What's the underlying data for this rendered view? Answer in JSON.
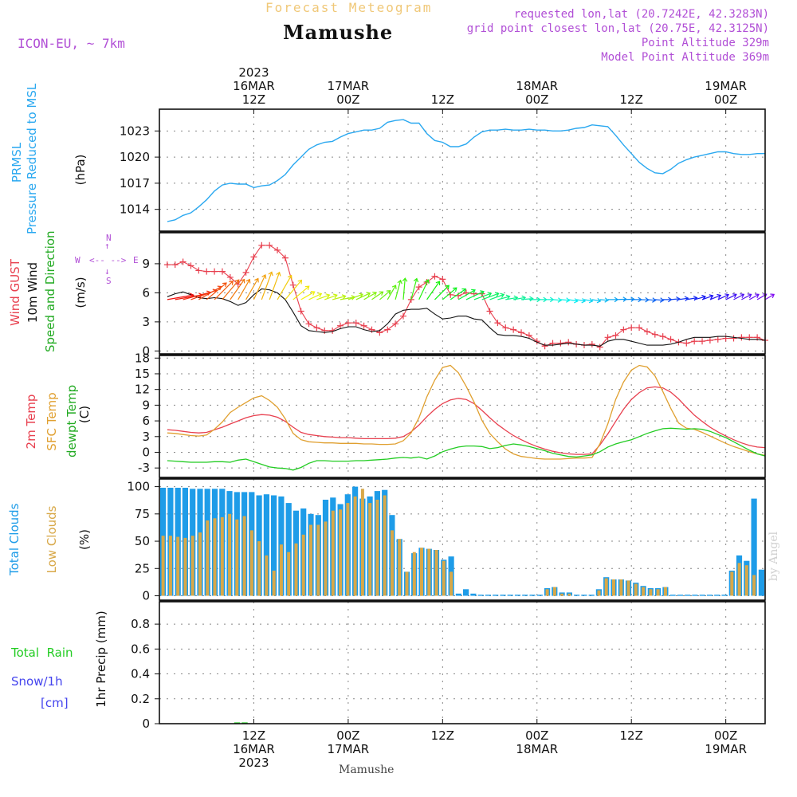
{
  "header": {
    "subtitle": "Forecast Meteogram",
    "title": "Mamushe",
    "model": "ICON-EU, ~ 7km",
    "requested": "requested lon,lat (20.7242E, 42.3283N)",
    "gridpoint": "grid point closest lon,lat (20.75E, 42.3125N)",
    "point_alt": "Point Altitude 329m",
    "model_alt": "Model Point Altitude 369m",
    "watermark": "by Angel",
    "bottom_label": "Mamushe"
  },
  "colors": {
    "pressure": "#2aa8f0",
    "gust": "#e8404f",
    "wind": "#111111",
    "temp2m": "#e8404f",
    "sfc": "#e0a030",
    "dew": "#22cc22",
    "total_clouds": "#1e9ce8",
    "low_clouds": "#d8a848",
    "rain": "#22cc22",
    "snow": "#4444ee",
    "compass": "#b14fd6"
  },
  "time_axis": {
    "top_labels": [
      {
        "lines": [
          "2023",
          "16MAR",
          "12Z"
        ],
        "h": 12
      },
      {
        "lines": [
          "17MAR",
          "00Z"
        ],
        "h": 24
      },
      {
        "lines": [
          "12Z"
        ],
        "h": 36
      },
      {
        "lines": [
          "18MAR",
          "00Z"
        ],
        "h": 48
      },
      {
        "lines": [
          "12Z"
        ],
        "h": 60
      },
      {
        "lines": [
          "19MAR",
          "00Z"
        ],
        "h": 72
      }
    ],
    "bottom_labels": [
      {
        "lines": [
          "12Z",
          "16MAR",
          "2023"
        ],
        "h": 12
      },
      {
        "lines": [
          "00Z",
          "17MAR"
        ],
        "h": 24
      },
      {
        "lines": [
          "12Z"
        ],
        "h": 36
      },
      {
        "lines": [
          "00Z",
          "18MAR"
        ],
        "h": 48
      },
      {
        "lines": [
          "12Z"
        ],
        "h": 60
      },
      {
        "lines": [
          "00Z",
          "19MAR"
        ],
        "h": 72
      }
    ]
  },
  "panels": {
    "pressure": {
      "label_a": "PRMSL",
      "label_b": "Pressure Reduced to MSL",
      "unit": "(hPa)"
    },
    "wind": {
      "label_gust": "Wind GUST",
      "label_wind": "10m Wind",
      "label_dir": "Speed and Direction",
      "unit": "(m/s)",
      "compass_n": "N",
      "compass_s": "S",
      "compass_w": "W",
      "compass_e": "E"
    },
    "temp": {
      "label_2m": "2m Temp",
      "label_sfc": "SFC Temp",
      "label_dew": "dewpt Temp",
      "unit": "(C)"
    },
    "clouds": {
      "label_total": "Total Clouds",
      "label_low": "Low Clouds",
      "unit": "(%)"
    },
    "precip": {
      "label_rain": "Total  Rain",
      "label_snow": "Snow/1h",
      "label_cm": "[cm]",
      "unit": "1hr Precip (mm)"
    }
  },
  "chart_data": [
    {
      "type": "line",
      "title": "PRMSL Pressure Reduced to MSL",
      "ylabel": "hPa",
      "ylim": [
        1011.5,
        1025.5
      ],
      "yticks": [
        1014,
        1017,
        1020,
        1023
      ],
      "x_unit": "hours since 2023-03-16 00Z",
      "x": [
        1,
        2,
        3,
        4,
        5,
        6,
        7,
        8,
        9,
        10,
        11,
        12,
        13,
        14,
        15,
        16,
        17,
        18,
        19,
        20,
        21,
        22,
        23,
        24,
        25,
        26,
        27,
        28,
        29,
        30,
        31,
        32,
        33,
        34,
        35,
        36,
        37,
        38,
        39,
        40,
        41,
        42,
        43,
        44,
        45,
        46,
        47,
        48,
        49,
        50,
        51,
        52,
        53,
        54,
        55,
        56,
        57,
        58,
        59,
        60,
        61,
        62,
        63,
        64,
        65,
        66,
        67,
        68,
        69,
        70,
        71,
        72,
        73,
        74,
        75,
        76,
        77
      ],
      "values": [
        1012.6,
        1012.8,
        1013.3,
        1013.6,
        1014.3,
        1015.1,
        1016.1,
        1016.8,
        1017.0,
        1016.9,
        1016.9,
        1016.5,
        1016.7,
        1016.8,
        1017.3,
        1018.0,
        1019.1,
        1020.0,
        1020.9,
        1021.4,
        1021.7,
        1021.8,
        1022.3,
        1022.7,
        1022.9,
        1023.1,
        1023.1,
        1023.3,
        1024.0,
        1024.2,
        1024.3,
        1023.9,
        1023.9,
        1022.7,
        1021.9,
        1021.7,
        1021.2,
        1021.2,
        1021.5,
        1022.3,
        1022.9,
        1023.1,
        1023.1,
        1023.2,
        1023.1,
        1023.1,
        1023.2,
        1023.1,
        1023.1,
        1023.0,
        1023.0,
        1023.1,
        1023.3,
        1023.4,
        1023.7,
        1023.6,
        1023.5,
        1022.5,
        1021.4,
        1020.4,
        1019.4,
        1018.7,
        1018.2,
        1018.1,
        1018.6,
        1019.3,
        1019.7,
        1020.0,
        1020.2,
        1020.4,
        1020.6,
        1020.6,
        1020.4,
        1020.3,
        1020.3,
        1020.4,
        1020.4
      ]
    },
    {
      "type": "line",
      "title": "Wind GUST / 10m Wind Speed and Direction",
      "ylabel": "m/s",
      "ylim": [
        -0.3,
        12.2
      ],
      "yticks": [
        0,
        3,
        6,
        9
      ],
      "series": [
        {
          "name": "Wind GUST",
          "x_step": 1,
          "values": [
            8.9,
            8.9,
            9.2,
            8.8,
            8.3,
            8.2,
            8.2,
            8.2,
            7.6,
            6.9,
            8.1,
            9.7,
            10.9,
            10.9,
            10.4,
            9.6,
            6.8,
            4.1,
            2.8,
            2.4,
            2.1,
            2.1,
            2.6,
            2.9,
            2.9,
            2.6,
            2.2,
            1.9,
            2.2,
            2.8,
            3.6,
            5.3,
            6.6,
            7.1,
            7.7,
            7.4,
            5.8,
            5.7,
            6.0,
            5.9,
            5.9,
            4.1,
            2.9,
            2.4,
            2.2,
            1.9,
            1.6,
            1.0,
            0.5,
            0.8,
            0.8,
            0.9,
            0.7,
            0.6,
            0.7,
            0.4,
            1.4,
            1.6,
            2.2,
            2.4,
            2.4,
            2.0,
            1.7,
            1.5,
            1.2,
            0.9,
            0.8,
            1.0,
            1.0,
            1.1,
            1.2,
            1.3,
            1.3,
            1.4,
            1.4,
            1.4,
            1.1
          ]
        },
        {
          "name": "10m Wind",
          "x_step": 1,
          "values": [
            5.6,
            5.9,
            6.1,
            5.8,
            5.5,
            5.4,
            5.5,
            5.4,
            5.1,
            4.7,
            5.0,
            5.8,
            6.4,
            6.3,
            6.0,
            5.3,
            4.0,
            2.6,
            2.1,
            2.0,
            1.9,
            2.0,
            2.3,
            2.5,
            2.5,
            2.2,
            2.0,
            2.1,
            2.8,
            3.8,
            4.2,
            4.3,
            4.3,
            4.4,
            3.8,
            3.3,
            3.4,
            3.6,
            3.6,
            3.3,
            3.2,
            2.4,
            1.7,
            1.6,
            1.6,
            1.5,
            1.3,
            0.9,
            0.6,
            0.6,
            0.7,
            0.8,
            0.7,
            0.6,
            0.6,
            0.5,
            1.0,
            1.2,
            1.2,
            1.0,
            0.8,
            0.6,
            0.6,
            0.6,
            0.7,
            0.9,
            1.2,
            1.4,
            1.4,
            1.4,
            1.5,
            1.5,
            1.4,
            1.3,
            1.2,
            1.2,
            1.1
          ]
        }
      ],
      "wind_dir_from_deg_hourly": [
        260,
        260,
        255,
        250,
        240,
        230,
        225,
        220,
        215,
        210,
        210,
        205,
        200,
        200,
        210,
        220,
        230,
        240,
        245,
        250,
        250,
        255,
        260,
        250,
        245,
        240,
        235,
        230,
        210,
        195,
        185,
        195,
        205,
        215,
        225,
        230,
        235,
        240,
        245,
        250,
        250,
        250,
        255,
        260,
        260,
        265,
        270,
        270,
        270,
        275,
        275,
        280,
        280,
        280,
        280,
        275,
        270,
        268,
        268,
        270,
        272,
        275,
        275,
        270,
        265,
        262,
        260,
        255,
        250,
        248,
        245,
        244,
        243,
        242,
        241,
        240,
        240
      ]
    },
    {
      "type": "line",
      "title": "2m Temp / SFC Temp / dewpt Temp",
      "ylabel": "C",
      "ylim": [
        -4.8,
        18.5
      ],
      "yticks": [
        -3,
        0,
        3,
        6,
        9,
        12,
        15,
        18
      ],
      "series": [
        {
          "name": "2m Temp",
          "x_step": 1,
          "values": [
            4.3,
            4.2,
            4.0,
            3.8,
            3.7,
            3.8,
            4.3,
            4.8,
            5.4,
            6.0,
            6.6,
            7.0,
            7.2,
            7.1,
            6.7,
            5.9,
            4.8,
            3.8,
            3.4,
            3.2,
            3.0,
            2.9,
            2.8,
            2.8,
            2.7,
            2.6,
            2.6,
            2.6,
            2.6,
            2.7,
            3.0,
            3.9,
            5.2,
            6.8,
            8.2,
            9.3,
            10.0,
            10.3,
            10.1,
            9.3,
            8.0,
            6.6,
            5.3,
            4.2,
            3.2,
            2.4,
            1.7,
            1.1,
            0.6,
            0.2,
            -0.1,
            -0.3,
            -0.4,
            -0.4,
            -0.3,
            1.4,
            3.5,
            5.9,
            8.2,
            10.1,
            11.4,
            12.3,
            12.5,
            12.3,
            11.5,
            10.2,
            8.6,
            7.1,
            5.9,
            4.8,
            3.9,
            3.1,
            2.4,
            1.8,
            1.3,
            1.0,
            0.9
          ]
        },
        {
          "name": "SFC Temp",
          "x_step": 1,
          "values": [
            3.7,
            3.6,
            3.4,
            3.2,
            3.1,
            3.3,
            4.4,
            5.8,
            7.6,
            8.6,
            9.5,
            10.4,
            10.8,
            9.9,
            8.6,
            6.4,
            3.6,
            2.4,
            2.0,
            1.9,
            1.8,
            1.8,
            1.7,
            1.7,
            1.7,
            1.6,
            1.6,
            1.5,
            1.5,
            1.6,
            2.2,
            3.7,
            6.6,
            10.6,
            13.8,
            16.2,
            16.6,
            15.2,
            12.6,
            9.6,
            6.1,
            3.6,
            2.0,
            0.6,
            -0.3,
            -0.8,
            -1.0,
            -1.2,
            -1.3,
            -1.3,
            -1.3,
            -1.2,
            -1.1,
            -1.1,
            -1.0,
            1.6,
            5.4,
            10.1,
            13.4,
            15.7,
            16.6,
            16.3,
            14.6,
            11.6,
            8.4,
            5.6,
            4.6,
            4.4,
            3.8,
            3.1,
            2.4,
            1.7,
            1.1,
            0.6,
            0.1,
            -0.3,
            -0.6
          ]
        },
        {
          "name": "dewpt Temp",
          "x_step": 1,
          "values": [
            -1.6,
            -1.7,
            -1.8,
            -1.9,
            -1.9,
            -1.9,
            -1.8,
            -1.8,
            -1.9,
            -1.5,
            -1.3,
            -1.8,
            -2.3,
            -2.8,
            -3.0,
            -3.1,
            -3.4,
            -2.9,
            -2.1,
            -1.6,
            -1.6,
            -1.7,
            -1.7,
            -1.7,
            -1.6,
            -1.6,
            -1.5,
            -1.4,
            -1.3,
            -1.1,
            -1.0,
            -1.1,
            -0.9,
            -1.3,
            -0.7,
            0.1,
            0.6,
            1.0,
            1.2,
            1.2,
            1.1,
            0.7,
            0.9,
            1.3,
            1.6,
            1.4,
            1.1,
            0.7,
            0.3,
            -0.2,
            -0.5,
            -0.8,
            -0.9,
            -0.7,
            -0.5,
            0.1,
            1.0,
            1.6,
            2.0,
            2.4,
            3.0,
            3.6,
            4.1,
            4.5,
            4.6,
            4.5,
            4.4,
            4.5,
            4.4,
            4.0,
            3.4,
            2.8,
            2.0,
            1.2,
            0.4,
            -0.3,
            -0.7
          ]
        }
      ]
    },
    {
      "type": "bar",
      "title": "Total Clouds / Low Clouds",
      "ylabel": "%",
      "ylim": [
        -4,
        107
      ],
      "yticks": [
        0,
        25,
        50,
        75,
        100
      ],
      "series": [
        {
          "name": "Total Clouds",
          "x_step": 1,
          "values": [
            99,
            99,
            99,
            99,
            98,
            98,
            98,
            98,
            98,
            96,
            95,
            95,
            95,
            92,
            93,
            92,
            91,
            85,
            78,
            80,
            75,
            74,
            88,
            90,
            84,
            93,
            100,
            89,
            91,
            96,
            97,
            74,
            52,
            22,
            39,
            44,
            43,
            42,
            33,
            36,
            2,
            6,
            2,
            1,
            1,
            1,
            1,
            1,
            1,
            1,
            1,
            1,
            7,
            8,
            3,
            3,
            1,
            1,
            1,
            6,
            17,
            15,
            15,
            14,
            12,
            9,
            7,
            7,
            8,
            1,
            1,
            1,
            1,
            1,
            1,
            1,
            1,
            23,
            37,
            32,
            89,
            24
          ]
        },
        {
          "name": "Low Clouds",
          "x_step": 1,
          "values": [
            55,
            55,
            54,
            53,
            55,
            58,
            69,
            71,
            72,
            75,
            70,
            73,
            60,
            50,
            37,
            23,
            47,
            40,
            48,
            56,
            65,
            65,
            68,
            78,
            79,
            85,
            91,
            98,
            85,
            88,
            92,
            60,
            52,
            22,
            40,
            44,
            43,
            42,
            32,
            22,
            0,
            0,
            0,
            0,
            0,
            0,
            0,
            0,
            0,
            0,
            0,
            0,
            6,
            8,
            2,
            2,
            0,
            0,
            0,
            5,
            16,
            15,
            15,
            14,
            11,
            8,
            6,
            6,
            8,
            0,
            0,
            0,
            0,
            0,
            0,
            0,
            0,
            22,
            30,
            28,
            19,
            0
          ]
        }
      ]
    },
    {
      "type": "bar",
      "title": "1hr Precip",
      "ylabel": "mm",
      "ylim": [
        0,
        0.98
      ],
      "yticks": [
        0,
        0.2,
        0.4,
        0.6,
        0.8
      ],
      "series": [
        {
          "name": "Total Rain",
          "x_step": 1,
          "values": [
            0,
            0,
            0,
            0,
            0,
            0,
            0,
            0,
            0,
            0,
            0.01,
            0.01,
            0,
            0,
            0,
            0,
            0,
            0,
            0,
            0,
            0,
            0,
            0,
            0,
            0,
            0,
            0,
            0,
            0,
            0,
            0,
            0,
            0,
            0,
            0,
            0,
            0,
            0,
            0,
            0,
            0,
            0,
            0,
            0,
            0,
            0,
            0,
            0,
            0,
            0,
            0,
            0,
            0,
            0,
            0,
            0,
            0,
            0,
            0,
            0,
            0,
            0,
            0,
            0,
            0,
            0,
            0,
            0,
            0,
            0,
            0,
            0,
            0,
            0,
            0,
            0,
            0,
            0,
            0,
            0,
            0
          ]
        },
        {
          "name": "Snow/1h",
          "x_step": 1,
          "values": [
            0,
            0,
            0,
            0,
            0,
            0,
            0,
            0,
            0,
            0,
            0,
            0,
            0,
            0,
            0,
            0,
            0,
            0,
            0,
            0,
            0,
            0,
            0,
            0,
            0,
            0,
            0,
            0,
            0,
            0,
            0,
            0,
            0,
            0,
            0,
            0,
            0,
            0,
            0,
            0,
            0,
            0,
            0,
            0,
            0,
            0,
            0,
            0,
            0,
            0,
            0,
            0,
            0,
            0,
            0,
            0,
            0,
            0,
            0,
            0,
            0,
            0,
            0,
            0,
            0,
            0,
            0,
            0,
            0,
            0,
            0,
            0,
            0,
            0,
            0,
            0,
            0,
            0,
            0,
            0,
            0
          ]
        }
      ]
    }
  ]
}
